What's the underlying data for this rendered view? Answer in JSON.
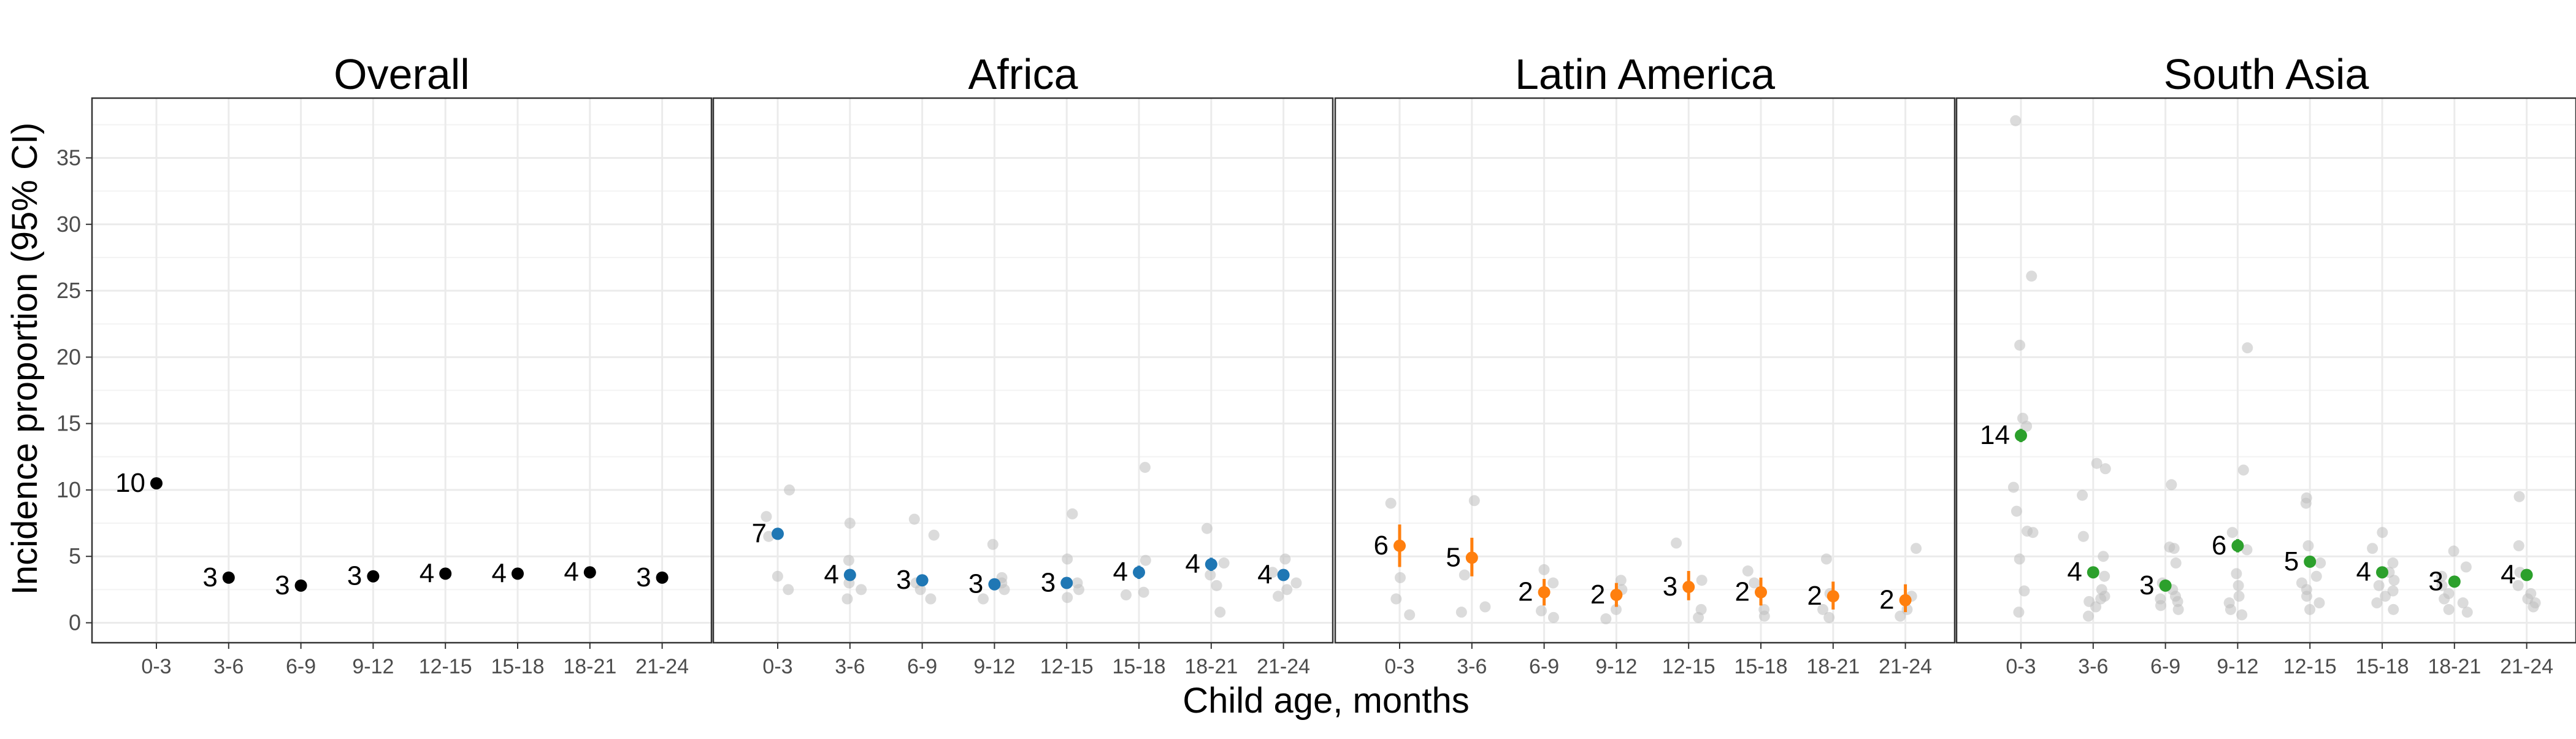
{
  "chart_data": {
    "type": "scatter",
    "layout": "facets-1x4",
    "xlabel": "Child age, months",
    "ylabel": "Incidence proportion (95% CI)",
    "categories": [
      "0-3",
      "3-6",
      "6-9",
      "9-12",
      "12-15",
      "15-18",
      "18-21",
      "21-24"
    ],
    "ylim": [
      -1.5,
      39.5
    ],
    "yticks": [
      0,
      5,
      10,
      15,
      20,
      25,
      30,
      35
    ],
    "grid": true,
    "legend": "none",
    "colors": {
      "background_grid": "#ebebeb",
      "panel_border": "#333333",
      "cohort_points": "#bdbdbd",
      "overall": "#000000",
      "africa": "#1f77b4",
      "latin_america": "#ff7f0e",
      "south_asia": "#2ca02c"
    },
    "panels": [
      {
        "title": "Overall",
        "color": "#000000",
        "estimates": [
          10.5,
          3.4,
          2.8,
          3.5,
          3.7,
          3.7,
          3.8,
          3.4
        ],
        "ci_low": [
          10.3,
          3.2,
          2.6,
          3.3,
          3.5,
          3.5,
          3.6,
          3.2
        ],
        "ci_high": [
          10.7,
          3.6,
          3.0,
          3.7,
          3.9,
          3.9,
          4.0,
          3.6
        ],
        "labels": [
          "10",
          "3",
          "3",
          "3",
          "4",
          "4",
          "4",
          "3"
        ],
        "cohort_points": []
      },
      {
        "title": "Africa",
        "color": "#1f77b4",
        "estimates": [
          6.7,
          3.6,
          3.2,
          2.9,
          3.0,
          3.8,
          4.4,
          3.6
        ],
        "ci_low": [
          6.3,
          3.2,
          2.8,
          2.5,
          2.6,
          3.3,
          3.9,
          3.2
        ],
        "ci_high": [
          7.1,
          4.0,
          3.6,
          3.3,
          3.4,
          4.3,
          4.9,
          4.0
        ],
        "labels": [
          "7",
          "4",
          "3",
          "3",
          "3",
          "4",
          "4",
          "4"
        ],
        "cohort_points": [
          [
            10.0,
            8.0,
            6.5,
            3.5,
            2.5
          ],
          [
            7.5,
            4.7,
            3.0,
            2.5,
            1.8
          ],
          [
            7.8,
            6.6,
            3.0,
            2.5,
            1.8
          ],
          [
            5.9,
            3.4,
            3.0,
            2.5,
            1.8
          ],
          [
            8.2,
            4.8,
            3.0,
            2.5,
            1.9
          ],
          [
            11.7,
            4.7,
            3.8,
            2.3,
            2.1
          ],
          [
            7.1,
            4.5,
            3.6,
            2.8,
            0.8
          ],
          [
            4.8,
            3.8,
            3.0,
            2.5,
            2.0
          ]
        ]
      },
      {
        "title": "Latin America",
        "color": "#ff7f0e",
        "estimates": [
          5.8,
          4.9,
          2.3,
          2.1,
          2.7,
          2.3,
          2.0,
          1.7
        ],
        "ci_low": [
          4.2,
          3.5,
          1.3,
          1.2,
          1.7,
          1.3,
          1.0,
          0.8
        ],
        "ci_high": [
          7.4,
          6.4,
          3.3,
          3.0,
          3.9,
          3.4,
          3.1,
          2.9
        ],
        "labels": [
          "6",
          "5",
          "2",
          "2",
          "3",
          "2",
          "2",
          "2"
        ],
        "cohort_points": [
          [
            9.0,
            3.4,
            1.8,
            0.6
          ],
          [
            9.2,
            3.6,
            1.2,
            0.8
          ],
          [
            4.0,
            3.0,
            0.9,
            0.4
          ],
          [
            3.2,
            2.5,
            1.0,
            0.3
          ],
          [
            6.0,
            3.2,
            1.0,
            0.4
          ],
          [
            3.9,
            3.0,
            1.0,
            0.5
          ],
          [
            4.8,
            2.2,
            1.0,
            0.4
          ],
          [
            5.6,
            2.0,
            1.0,
            0.5
          ]
        ]
      },
      {
        "title": "South Asia",
        "color": "#2ca02c",
        "estimates": [
          14.1,
          3.8,
          2.8,
          5.8,
          4.6,
          3.8,
          3.1,
          3.6
        ],
        "ci_low": [
          13.6,
          3.4,
          2.4,
          5.3,
          4.2,
          3.4,
          2.7,
          3.2
        ],
        "ci_high": [
          14.6,
          4.2,
          3.2,
          6.3,
          5.0,
          4.2,
          3.5,
          4.0
        ],
        "labels": [
          "14",
          "4",
          "3",
          "6",
          "5",
          "4",
          "3",
          "4"
        ],
        "cohort_points": [
          [
            37.8,
            26.1,
            20.9,
            15.4,
            14.8,
            10.2,
            8.4,
            6.9,
            6.8,
            4.8,
            2.4,
            0.8
          ],
          [
            12.0,
            11.6,
            9.6,
            6.5,
            5.0,
            3.5,
            2.5,
            2.0,
            1.8,
            1.6,
            1.2,
            0.5
          ],
          [
            10.4,
            5.7,
            5.6,
            4.5,
            3.0,
            2.5,
            2.0,
            1.8,
            1.6,
            1.3,
            1.0
          ],
          [
            20.7,
            11.5,
            6.8,
            5.5,
            3.7,
            2.8,
            2.0,
            1.5,
            1.0,
            0.6
          ],
          [
            9.4,
            9.0,
            5.8,
            4.5,
            3.5,
            3.0,
            2.5,
            2.0,
            1.5,
            1.0
          ],
          [
            6.8,
            5.6,
            4.5,
            3.8,
            3.2,
            2.8,
            2.4,
            2.0,
            1.5,
            1.0
          ],
          [
            5.4,
            4.2,
            3.5,
            2.8,
            2.2,
            1.8,
            1.5,
            1.0,
            0.8
          ],
          [
            9.5,
            5.8,
            3.8,
            2.8,
            2.2,
            1.8,
            1.5,
            1.2
          ]
        ]
      }
    ]
  }
}
